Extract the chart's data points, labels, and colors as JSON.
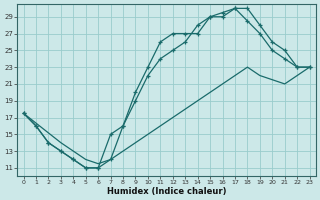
{
  "xlabel": "Humidex (Indice chaleur)",
  "bg_color": "#cce8e8",
  "grid_color": "#99cccc",
  "line_color": "#1a6b6b",
  "xlim": [
    -0.5,
    23.5
  ],
  "ylim": [
    10.0,
    30.5
  ],
  "xticks": [
    0,
    1,
    2,
    3,
    4,
    5,
    6,
    7,
    8,
    9,
    10,
    11,
    12,
    13,
    14,
    15,
    16,
    17,
    18,
    19,
    20,
    21,
    22,
    23
  ],
  "yticks": [
    11,
    13,
    15,
    17,
    19,
    21,
    23,
    25,
    27,
    29
  ],
  "curve1_x": [
    0,
    1,
    2,
    3,
    4,
    5,
    6,
    7,
    8,
    9,
    10,
    11,
    12,
    13,
    14,
    15,
    16,
    17,
    18,
    19,
    20,
    21,
    22,
    23
  ],
  "curve1_y": [
    17.5,
    16,
    14,
    13,
    12,
    11,
    11,
    12,
    16,
    20,
    23,
    26,
    27,
    27,
    27,
    29,
    29,
    30,
    30,
    28,
    26,
    25,
    23,
    23
  ],
  "curve2_x": [
    0,
    1,
    2,
    3,
    4,
    5,
    6,
    7,
    8,
    9,
    10,
    11,
    12,
    13,
    14,
    15,
    16,
    17,
    18,
    19,
    20,
    21,
    22,
    23
  ],
  "curve2_y": [
    17.5,
    16,
    14,
    13,
    12,
    11,
    11,
    15,
    16,
    19,
    22,
    24,
    25,
    26,
    28,
    29,
    29.5,
    30,
    28.5,
    27,
    25,
    24,
    23,
    23
  ],
  "line3_x": [
    0,
    3,
    5,
    6,
    7,
    8,
    10,
    12,
    14,
    16,
    18,
    19,
    20,
    21,
    22,
    23
  ],
  "line3_y": [
    17.5,
    14,
    12,
    11.5,
    12,
    13,
    15,
    17,
    19,
    21,
    23,
    22,
    21.5,
    21,
    22,
    23
  ]
}
